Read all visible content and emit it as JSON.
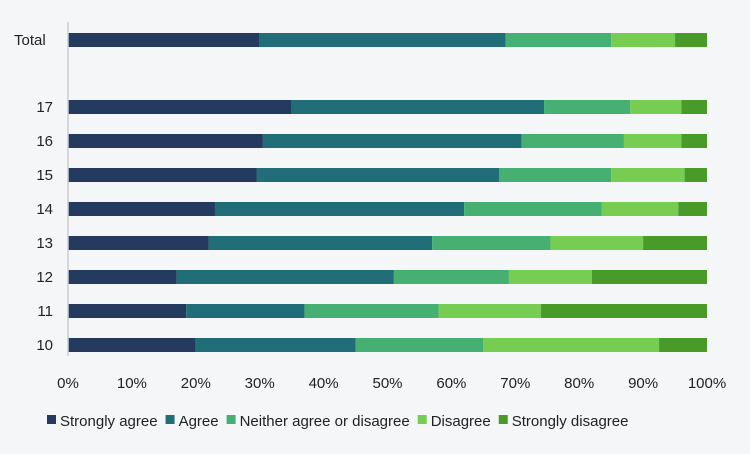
{
  "chart_data": {
    "type": "bar",
    "orientation": "horizontal",
    "stacked": true,
    "categories": [
      "Total",
      "17",
      "16",
      "15",
      "14",
      "13",
      "12",
      "11",
      "10"
    ],
    "series": [
      {
        "name": "Strongly agree",
        "color": "#243a5e",
        "values": [
          30,
          35,
          30.5,
          29.5,
          23,
          22,
          17,
          18.5,
          20
        ]
      },
      {
        "name": "Agree",
        "color": "#226e78",
        "values": [
          38.5,
          39.5,
          40.5,
          38,
          39,
          35,
          34,
          18.5,
          25
        ]
      },
      {
        "name": "Neither agree or disagree",
        "color": "#45b072",
        "values": [
          16.5,
          13.5,
          16,
          17.5,
          21.5,
          18.5,
          18,
          21,
          20
        ]
      },
      {
        "name": "Disagree",
        "color": "#76cd52",
        "values": [
          10,
          8,
          9,
          11.5,
          12,
          14.5,
          13,
          16,
          27.5
        ]
      },
      {
        "name": "Strongly disagree",
        "color": "#4a9a2a",
        "values": [
          5,
          4,
          4,
          3.5,
          4.5,
          10,
          18,
          26,
          7.5
        ]
      }
    ],
    "x_ticks": [
      "0%",
      "10%",
      "20%",
      "30%",
      "40%",
      "50%",
      "60%",
      "70%",
      "80%",
      "90%",
      "100%"
    ],
    "xlim": [
      0,
      100
    ],
    "grid": false,
    "legend_position": "bottom"
  }
}
